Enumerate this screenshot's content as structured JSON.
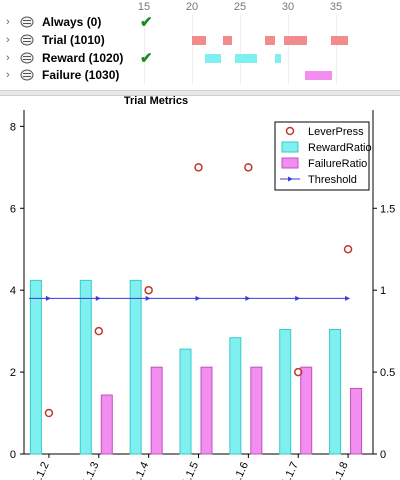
{
  "timeline": {
    "ticks": [
      "15",
      "20",
      "25",
      "30",
      "35"
    ],
    "tick_values": [
      15,
      20,
      25,
      30,
      35
    ],
    "rows": [
      {
        "chevron": "›",
        "icon": "event-icon",
        "label": "Always (0)",
        "checked": true,
        "color": "#f28b8b",
        "segments": []
      },
      {
        "chevron": "›",
        "icon": "event-icon",
        "label": "Trial (1010)",
        "checked": false,
        "color": "#f28b8b",
        "segments": [
          [
            20.0,
            21.5
          ],
          [
            23.2,
            24.2
          ],
          [
            27.6,
            28.6
          ],
          [
            29.6,
            32.0
          ],
          [
            34.5,
            36.2
          ]
        ]
      },
      {
        "chevron": "›",
        "icon": "event-icon",
        "label": "Reward (1020)",
        "checked": true,
        "color": "#7ff0f0",
        "segments": [
          [
            21.4,
            23.0
          ],
          [
            24.5,
            26.8
          ],
          [
            28.6,
            29.3
          ]
        ]
      },
      {
        "chevron": "›",
        "icon": "event-icon",
        "label": "Failure (1030)",
        "checked": false,
        "color": "#f28ef0",
        "segments": [
          [
            31.8,
            34.6
          ]
        ]
      }
    ],
    "check_glyph": "✔"
  },
  "chart_data": {
    "type": "bar",
    "title": "Trial Metrics",
    "categories": [
      "1.1.2",
      "1.1.3",
      "1.1.4",
      "1.1.5",
      "1.1.6",
      "1.1.7",
      "1.1.8"
    ],
    "left_axis": {
      "range": [
        0,
        8.4
      ],
      "ticks": [
        0,
        2,
        4,
        6,
        8
      ],
      "tick_labels": [
        "0",
        "2",
        "4",
        "6",
        "8"
      ]
    },
    "right_axis": {
      "range": [
        0,
        2.1
      ],
      "ticks": [
        0,
        0.5,
        1,
        1.5
      ],
      "tick_labels": [
        "0",
        "0.5",
        "1",
        "1.5"
      ]
    },
    "series": [
      {
        "name": "LeverPress",
        "kind": "scatter",
        "axis": "left",
        "color": "#c0392b",
        "values": [
          1.0,
          3.0,
          4.0,
          7.0,
          7.0,
          2.0,
          5.0
        ]
      },
      {
        "name": "RewardRatio",
        "kind": "bar",
        "axis": "right",
        "color": "#7ff0f0",
        "stroke": "#3cc9c9",
        "values": [
          1.06,
          1.06,
          1.06,
          0.64,
          0.71,
          0.76,
          0.76
        ]
      },
      {
        "name": "FailureRatio",
        "kind": "bar",
        "axis": "right",
        "color": "#f28ef0",
        "stroke": "#c050c0",
        "values": [
          0.0,
          0.36,
          0.53,
          0.53,
          0.53,
          0.53,
          0.4
        ]
      },
      {
        "name": "Threshold",
        "kind": "line",
        "axis": "right",
        "color": "#3a3ae0",
        "values": [
          0.95,
          0.95,
          0.95,
          0.95,
          0.95,
          0.95,
          0.95
        ]
      }
    ],
    "legend_position": "top-right",
    "grid": false
  }
}
